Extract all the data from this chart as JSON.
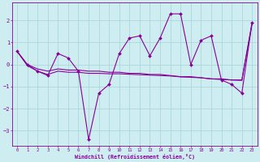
{
  "xlabel": "Windchill (Refroidissement éolien,°C)",
  "background_color": "#cdedf0",
  "grid_color": "#aad8dc",
  "line_color": "#880099",
  "x_ticks": [
    0,
    1,
    2,
    3,
    4,
    5,
    6,
    7,
    8,
    9,
    10,
    11,
    12,
    13,
    14,
    15,
    16,
    17,
    18,
    19,
    20,
    21,
    22,
    23
  ],
  "y_ticks": [
    -3,
    -2,
    -1,
    0,
    1,
    2
  ],
  "ylim": [
    -3.7,
    2.8
  ],
  "xlim": [
    -0.5,
    23.5
  ],
  "series1": [
    0.6,
    0.0,
    -0.3,
    -0.5,
    0.5,
    0.3,
    -0.3,
    -3.4,
    -1.3,
    -0.9,
    0.5,
    1.2,
    1.3,
    0.4,
    1.2,
    2.3,
    2.3,
    0.0,
    1.1,
    1.3,
    -0.7,
    -0.9,
    -1.3,
    1.9
  ],
  "series2": [
    0.6,
    0.0,
    -0.2,
    -0.3,
    -0.2,
    -0.25,
    -0.25,
    -0.3,
    -0.3,
    -0.35,
    -0.35,
    -0.4,
    -0.4,
    -0.45,
    -0.45,
    -0.5,
    -0.55,
    -0.55,
    -0.6,
    -0.65,
    -0.65,
    -0.7,
    -0.7,
    1.9
  ],
  "series3": [
    0.6,
    -0.05,
    -0.3,
    -0.45,
    -0.3,
    -0.35,
    -0.35,
    -0.4,
    -0.4,
    -0.42,
    -0.42,
    -0.44,
    -0.46,
    -0.48,
    -0.5,
    -0.52,
    -0.56,
    -0.58,
    -0.6,
    -0.65,
    -0.68,
    -0.7,
    -0.72,
    1.85
  ],
  "figwidth": 3.2,
  "figheight": 2.0,
  "dpi": 100
}
